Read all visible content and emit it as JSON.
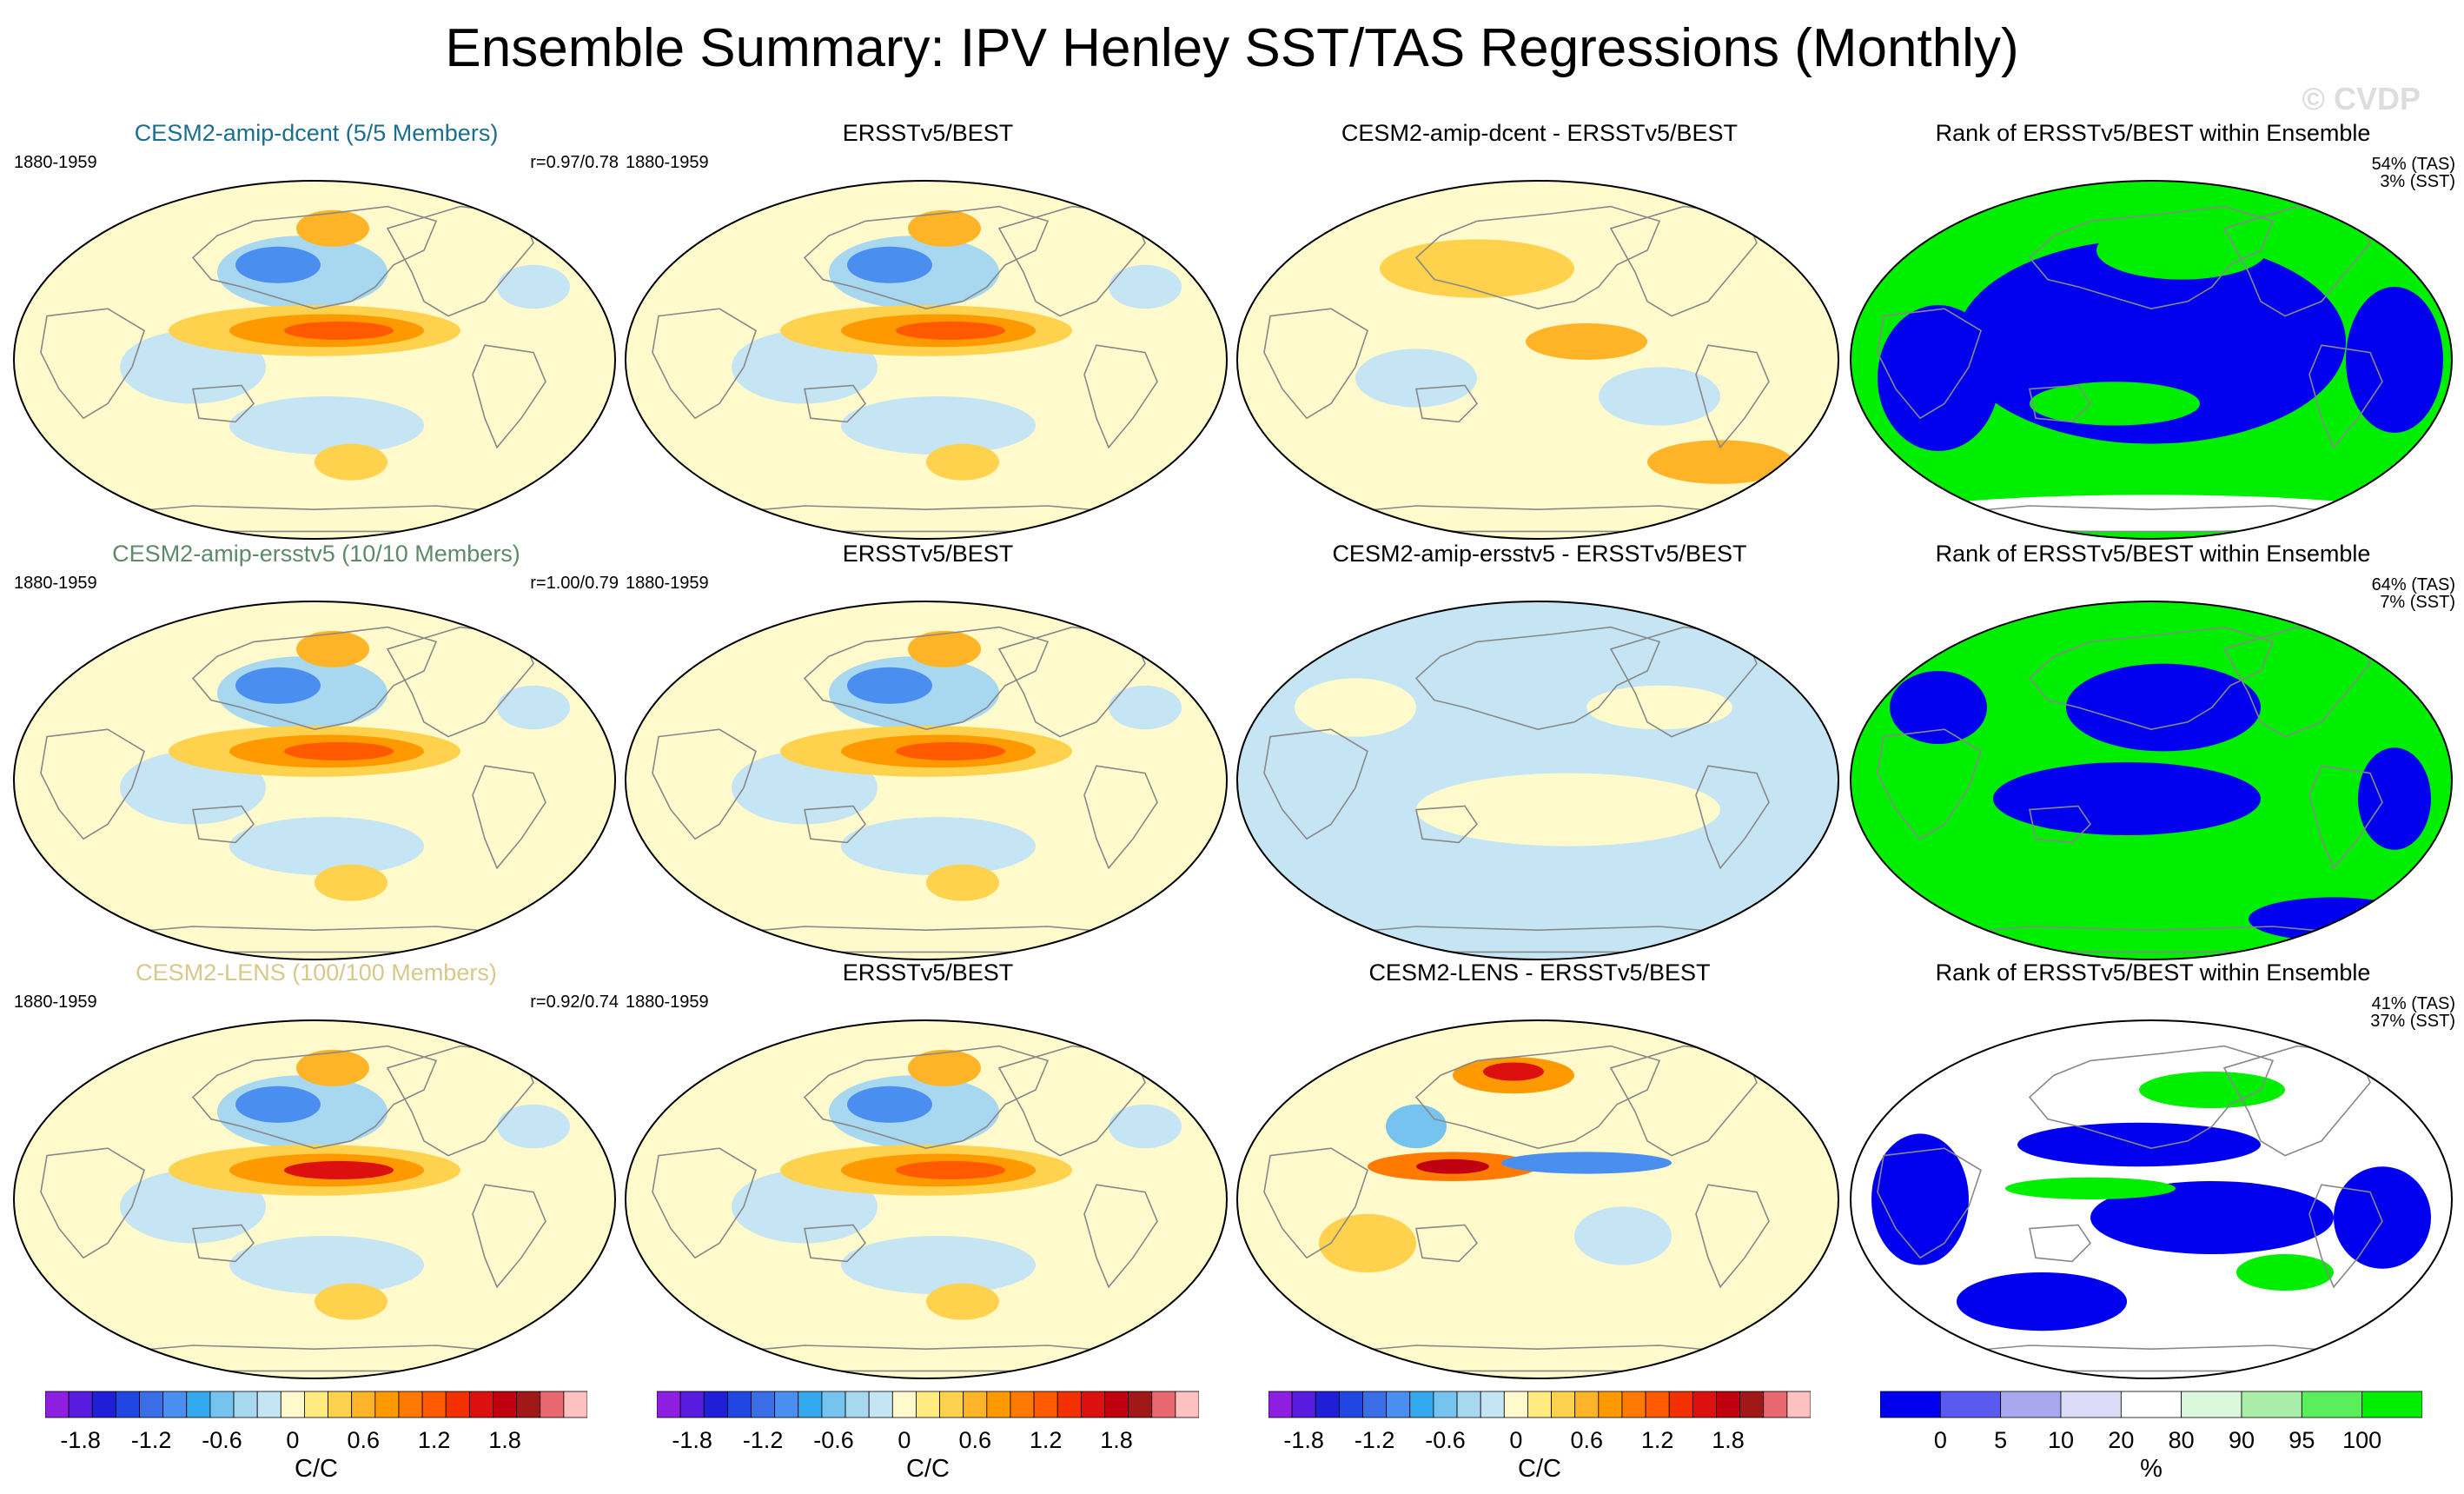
{
  "title": "Ensemble Summary: IPV Henley SST/TAS Regressions (Monthly)",
  "watermark": "© CVDP",
  "colors": {
    "rank_blue": "#0000ee",
    "rank_green": "#00ee00",
    "title_row1": "#1a6e8e",
    "title_row2": "#5e8a6a",
    "title_row3": "#d8c88a"
  },
  "rows": [
    {
      "model": {
        "title": "CESM2-amip-dcent (5/5 Members)",
        "period": "1880-1959",
        "corr": "r=0.97/0.78"
      },
      "obs": {
        "title": "ERSSTv5/BEST",
        "period": "1880-1959"
      },
      "diff": {
        "title": "CESM2-amip-dcent - ERSSTv5/BEST"
      },
      "rank": {
        "title": "Rank of ERSSTv5/BEST within Ensemble",
        "tas": "54% (TAS)",
        "sst": "3% (SST)"
      }
    },
    {
      "model": {
        "title": "CESM2-amip-ersstv5 (10/10 Members)",
        "period": "1880-1959",
        "corr": "r=1.00/0.79"
      },
      "obs": {
        "title": "ERSSTv5/BEST",
        "period": "1880-1959"
      },
      "diff": {
        "title": "CESM2-amip-ersstv5 - ERSSTv5/BEST"
      },
      "rank": {
        "title": "Rank of ERSSTv5/BEST within Ensemble",
        "tas": "64% (TAS)",
        "sst": "7% (SST)"
      }
    },
    {
      "model": {
        "title": "CESM2-LENS (100/100 Members)",
        "period": "1880-1959",
        "corr": "r=0.92/0.74"
      },
      "obs": {
        "title": "ERSSTv5/BEST",
        "period": "1880-1959"
      },
      "diff": {
        "title": "CESM2-LENS - ERSSTv5/BEST"
      },
      "rank": {
        "title": "Rank of ERSSTv5/BEST within Ensemble",
        "tas": "41% (TAS)",
        "sst": "37% (SST)"
      }
    }
  ],
  "colorbars": {
    "regression": {
      "unit": "C/C",
      "labels": [
        "-1.8",
        "-1.2",
        "-0.6",
        "0",
        "0.6",
        "1.2",
        "1.8"
      ],
      "colors": [
        "#8f1fe0",
        "#5a1be0",
        "#1f1fd8",
        "#2048e0",
        "#3a6ee8",
        "#4a8ef0",
        "#33aaf0",
        "#77c3f0",
        "#a8d8f0",
        "#c6e5f4",
        "#fffacc",
        "#ffeb80",
        "#ffd24d",
        "#ffb326",
        "#ff9900",
        "#ff7a00",
        "#ff5a00",
        "#f23000",
        "#dd1010",
        "#c00010",
        "#a01818",
        "#e86870",
        "#ffc0c0"
      ]
    },
    "rank": {
      "unit": "%",
      "labels": [
        "0",
        "5",
        "10",
        "20",
        "80",
        "90",
        "95",
        "100"
      ],
      "colors": [
        "#0000ee",
        "#5a5aee",
        "#a8a8ee",
        "#dcdcf8",
        "#ffffff",
        "#dcf8dc",
        "#a8eea8",
        "#5aee5a",
        "#00ee00"
      ]
    }
  }
}
